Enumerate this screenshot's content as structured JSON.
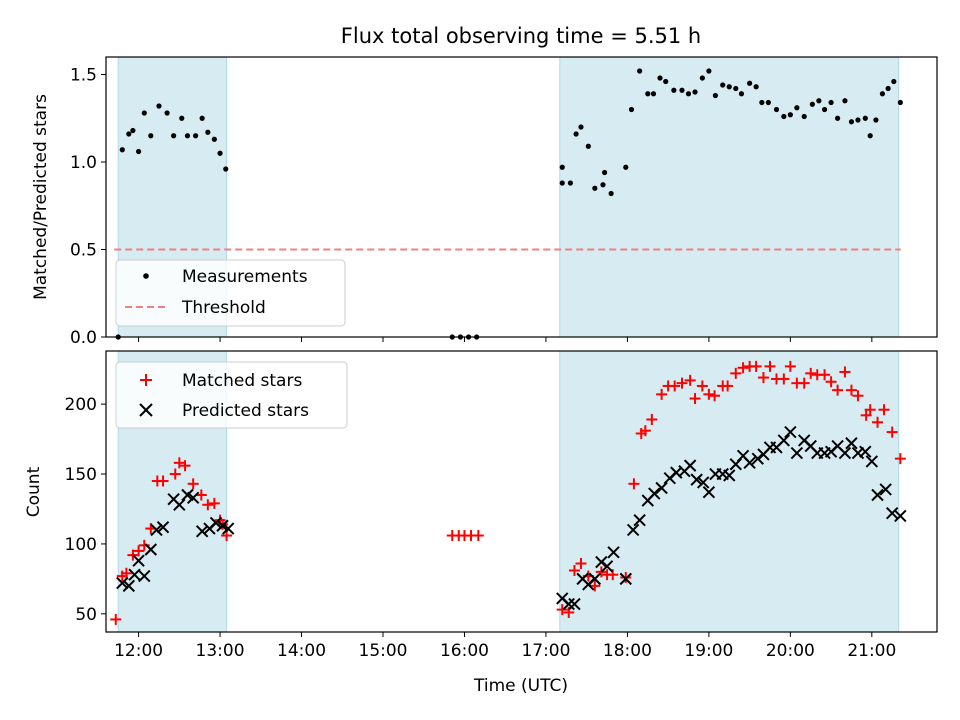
{
  "title": "Flux total observing time = 5.51 h",
  "chart_data": [
    {
      "type": "scatter",
      "ylabel": "Matched/Predicted stars",
      "xlabel": "",
      "xlim": [
        11.6,
        21.8
      ],
      "ylim": [
        0.0,
        1.6
      ],
      "yticks": [
        0.0,
        0.5,
        1.0,
        1.5
      ],
      "ytick_labels": [
        "0.0",
        "0.5",
        "1.0",
        "1.5"
      ],
      "grid": false,
      "legend_position": "lower-left",
      "shaded_intervals": [
        [
          11.75,
          13.08
        ],
        [
          17.17,
          21.33
        ]
      ],
      "threshold": {
        "name": "Threshold",
        "value": 0.5,
        "color": "#f08080",
        "style": "dashed"
      },
      "series": [
        {
          "name": "Measurements",
          "marker": "dot",
          "color": "#000000",
          "points": [
            [
              11.75,
              0.0
            ],
            [
              11.8,
              1.07
            ],
            [
              11.88,
              1.16
            ],
            [
              11.93,
              1.18
            ],
            [
              12.0,
              1.06
            ],
            [
              12.07,
              1.28
            ],
            [
              12.15,
              1.15
            ],
            [
              12.25,
              1.32
            ],
            [
              12.35,
              1.28
            ],
            [
              12.43,
              1.15
            ],
            [
              12.53,
              1.25
            ],
            [
              12.6,
              1.15
            ],
            [
              12.7,
              1.15
            ],
            [
              12.78,
              1.25
            ],
            [
              12.85,
              1.17
            ],
            [
              12.93,
              1.13
            ],
            [
              13.0,
              1.05
            ],
            [
              13.07,
              0.96
            ],
            [
              15.85,
              0.0
            ],
            [
              15.95,
              0.0
            ],
            [
              16.05,
              0.0
            ],
            [
              16.15,
              0.0
            ],
            [
              17.2,
              0.97
            ],
            [
              17.2,
              0.88
            ],
            [
              17.3,
              0.88
            ],
            [
              17.37,
              1.16
            ],
            [
              17.43,
              1.2
            ],
            [
              17.52,
              1.09
            ],
            [
              17.6,
              0.85
            ],
            [
              17.7,
              0.87
            ],
            [
              17.72,
              0.94
            ],
            [
              17.8,
              0.82
            ],
            [
              17.98,
              0.97
            ],
            [
              18.05,
              1.3
            ],
            [
              18.15,
              1.52
            ],
            [
              18.25,
              1.39
            ],
            [
              18.32,
              1.39
            ],
            [
              18.4,
              1.48
            ],
            [
              18.47,
              1.46
            ],
            [
              18.57,
              1.41
            ],
            [
              18.67,
              1.41
            ],
            [
              18.75,
              1.39
            ],
            [
              18.83,
              1.4
            ],
            [
              18.92,
              1.48
            ],
            [
              19.0,
              1.52
            ],
            [
              19.08,
              1.38
            ],
            [
              19.17,
              1.44
            ],
            [
              19.25,
              1.43
            ],
            [
              19.33,
              1.42
            ],
            [
              19.4,
              1.39
            ],
            [
              19.5,
              1.45
            ],
            [
              19.58,
              1.43
            ],
            [
              19.65,
              1.34
            ],
            [
              19.73,
              1.34
            ],
            [
              19.83,
              1.3
            ],
            [
              19.92,
              1.26
            ],
            [
              20.0,
              1.27
            ],
            [
              20.08,
              1.31
            ],
            [
              20.17,
              1.26
            ],
            [
              20.27,
              1.33
            ],
            [
              20.35,
              1.35
            ],
            [
              20.42,
              1.3
            ],
            [
              20.5,
              1.34
            ],
            [
              20.58,
              1.25
            ],
            [
              20.67,
              1.35
            ],
            [
              20.75,
              1.23
            ],
            [
              20.83,
              1.24
            ],
            [
              20.92,
              1.25
            ],
            [
              20.98,
              1.15
            ],
            [
              21.05,
              1.24
            ],
            [
              21.13,
              1.39
            ],
            [
              21.2,
              1.42
            ],
            [
              21.27,
              1.46
            ],
            [
              21.35,
              1.34
            ]
          ]
        }
      ]
    },
    {
      "type": "scatter",
      "ylabel": "Count",
      "xlabel": "Time (UTC)",
      "xlim": [
        11.6,
        21.8
      ],
      "ylim": [
        37,
        238
      ],
      "yticks": [
        50,
        100,
        150,
        200
      ],
      "ytick_labels": [
        "50",
        "100",
        "150",
        "200"
      ],
      "xticks": [
        12,
        13,
        14,
        15,
        16,
        17,
        18,
        19,
        20,
        21
      ],
      "xtick_labels": [
        "12:00",
        "13:00",
        "14:00",
        "15:00",
        "16:00",
        "17:00",
        "18:00",
        "19:00",
        "20:00",
        "21:00"
      ],
      "grid": false,
      "legend_position": "upper-left",
      "shaded_intervals": [
        [
          11.75,
          13.08
        ],
        [
          17.17,
          21.33
        ]
      ],
      "series": [
        {
          "name": "Matched stars",
          "marker": "plus",
          "color": "#ff0000",
          "points": [
            [
              11.72,
              46
            ],
            [
              11.8,
              77
            ],
            [
              11.85,
              79
            ],
            [
              11.93,
              92
            ],
            [
              12.0,
              95
            ],
            [
              12.07,
              99
            ],
            [
              12.15,
              111
            ],
            [
              12.23,
              145
            ],
            [
              12.3,
              145
            ],
            [
              12.45,
              150
            ],
            [
              12.5,
              158
            ],
            [
              12.57,
              156
            ],
            [
              12.67,
              143
            ],
            [
              12.77,
              135
            ],
            [
              12.85,
              128
            ],
            [
              12.93,
              129
            ],
            [
              13.0,
              117
            ],
            [
              13.03,
              114
            ],
            [
              13.08,
              106
            ],
            [
              15.85,
              106
            ],
            [
              15.93,
              106
            ],
            [
              16.0,
              106
            ],
            [
              16.08,
              106
            ],
            [
              16.17,
              106
            ],
            [
              17.2,
              53
            ],
            [
              17.28,
              51
            ],
            [
              17.35,
              81
            ],
            [
              17.43,
              86
            ],
            [
              17.52,
              77
            ],
            [
              17.6,
              70
            ],
            [
              17.68,
              80
            ],
            [
              17.75,
              78
            ],
            [
              17.82,
              78
            ],
            [
              17.98,
              76
            ],
            [
              18.08,
              143
            ],
            [
              18.17,
              179
            ],
            [
              18.22,
              181
            ],
            [
              18.3,
              189
            ],
            [
              18.42,
              207
            ],
            [
              18.5,
              213
            ],
            [
              18.58,
              213
            ],
            [
              18.67,
              215
            ],
            [
              18.77,
              217
            ],
            [
              18.83,
              204
            ],
            [
              18.92,
              213
            ],
            [
              19.0,
              207
            ],
            [
              19.07,
              206
            ],
            [
              19.17,
              213
            ],
            [
              19.23,
              213
            ],
            [
              19.33,
              222
            ],
            [
              19.42,
              226
            ],
            [
              19.5,
              227
            ],
            [
              19.58,
              227
            ],
            [
              19.67,
              219
            ],
            [
              19.75,
              227
            ],
            [
              19.83,
              218
            ],
            [
              19.92,
              218
            ],
            [
              20.0,
              227
            ],
            [
              20.08,
              215
            ],
            [
              20.17,
              215
            ],
            [
              20.25,
              222
            ],
            [
              20.33,
              221
            ],
            [
              20.42,
              221
            ],
            [
              20.5,
              216
            ],
            [
              20.58,
              210
            ],
            [
              20.67,
              223
            ],
            [
              20.75,
              210
            ],
            [
              20.83,
              206
            ],
            [
              20.93,
              192
            ],
            [
              20.98,
              196
            ],
            [
              21.07,
              187
            ],
            [
              21.15,
              196
            ],
            [
              21.25,
              180
            ],
            [
              21.35,
              161
            ]
          ]
        },
        {
          "name": "Predicted stars",
          "marker": "x",
          "color": "#000000",
          "points": [
            [
              11.8,
              72
            ],
            [
              11.88,
              70
            ],
            [
              11.95,
              78
            ],
            [
              12.0,
              88
            ],
            [
              12.07,
              77
            ],
            [
              12.15,
              96
            ],
            [
              12.22,
              110
            ],
            [
              12.3,
              112
            ],
            [
              12.43,
              132
            ],
            [
              12.5,
              128
            ],
            [
              12.6,
              135
            ],
            [
              12.67,
              133
            ],
            [
              12.78,
              109
            ],
            [
              12.87,
              111
            ],
            [
              12.95,
              115
            ],
            [
              13.03,
              113
            ],
            [
              13.1,
              111
            ],
            [
              17.2,
              61
            ],
            [
              17.28,
              57
            ],
            [
              17.35,
              57
            ],
            [
              17.45,
              75
            ],
            [
              17.52,
              71
            ],
            [
              17.6,
              75
            ],
            [
              17.68,
              87
            ],
            [
              17.75,
              84
            ],
            [
              17.83,
              94
            ],
            [
              17.98,
              75
            ],
            [
              18.07,
              110
            ],
            [
              18.15,
              117
            ],
            [
              18.25,
              131
            ],
            [
              18.33,
              136
            ],
            [
              18.42,
              140
            ],
            [
              18.52,
              147
            ],
            [
              18.6,
              151
            ],
            [
              18.7,
              152
            ],
            [
              18.77,
              156
            ],
            [
              18.85,
              146
            ],
            [
              18.93,
              144
            ],
            [
              19.0,
              137
            ],
            [
              19.08,
              150
            ],
            [
              19.17,
              150
            ],
            [
              19.25,
              149
            ],
            [
              19.33,
              157
            ],
            [
              19.42,
              163
            ],
            [
              19.5,
              158
            ],
            [
              19.6,
              161
            ],
            [
              19.67,
              164
            ],
            [
              19.75,
              169
            ],
            [
              19.83,
              169
            ],
            [
              19.92,
              174
            ],
            [
              20.0,
              180
            ],
            [
              20.08,
              165
            ],
            [
              20.17,
              174
            ],
            [
              20.25,
              170
            ],
            [
              20.33,
              165
            ],
            [
              20.42,
              165
            ],
            [
              20.5,
              166
            ],
            [
              20.58,
              170
            ],
            [
              20.67,
              165
            ],
            [
              20.75,
              172
            ],
            [
              20.83,
              165
            ],
            [
              20.92,
              166
            ],
            [
              21.0,
              159
            ],
            [
              21.07,
              135
            ],
            [
              21.17,
              139
            ],
            [
              21.25,
              122
            ],
            [
              21.35,
              120
            ]
          ]
        }
      ]
    }
  ]
}
